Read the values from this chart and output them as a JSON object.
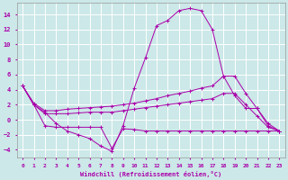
{
  "xlabel": "Windchill (Refroidissement éolien,°C)",
  "background_color": "#cce8e8",
  "grid_color": "#ffffff",
  "line_color": "#aa00aa",
  "xlim": [
    -0.5,
    23.5
  ],
  "ylim": [
    -5,
    15.5
  ],
  "xticks": [
    0,
    1,
    2,
    3,
    4,
    5,
    6,
    7,
    8,
    9,
    10,
    11,
    12,
    13,
    14,
    15,
    16,
    17,
    18,
    19,
    20,
    21,
    22,
    23
  ],
  "yticks": [
    -4,
    -2,
    0,
    2,
    4,
    6,
    8,
    10,
    12,
    14
  ],
  "curve1_x": [
    0,
    1,
    2,
    3,
    4,
    5,
    6,
    7,
    8,
    9,
    10,
    11,
    12,
    13,
    14,
    15,
    16,
    17,
    18,
    19,
    20,
    21,
    22,
    23
  ],
  "curve1_y": [
    4.5,
    2.0,
    1.0,
    -0.5,
    -1.5,
    -2.0,
    -2.5,
    -3.5,
    -4.2,
    -0.8,
    4.2,
    8.2,
    12.5,
    13.2,
    14.5,
    14.8,
    14.5,
    12.0,
    5.8,
    3.2,
    1.5,
    1.5,
    -0.5,
    -1.5
  ],
  "curve2_x": [
    0,
    1,
    2,
    3,
    4,
    5,
    6,
    7,
    8,
    9,
    10,
    11,
    12,
    13,
    14,
    15,
    16,
    17,
    18,
    19,
    20,
    21,
    22,
    23
  ],
  "curve2_y": [
    4.5,
    2.2,
    1.2,
    1.2,
    1.4,
    1.5,
    1.6,
    1.7,
    1.8,
    2.0,
    2.2,
    2.5,
    2.8,
    3.2,
    3.5,
    3.8,
    4.2,
    4.5,
    5.8,
    5.8,
    3.5,
    1.5,
    -0.8,
    -1.5
  ],
  "curve3_x": [
    0,
    1,
    2,
    3,
    4,
    5,
    6,
    7,
    8,
    9,
    10,
    11,
    12,
    13,
    14,
    15,
    16,
    17,
    18,
    19,
    20,
    21,
    22,
    23
  ],
  "curve3_y": [
    4.5,
    2.0,
    0.8,
    0.8,
    0.8,
    0.9,
    1.0,
    1.0,
    1.0,
    1.2,
    1.4,
    1.6,
    1.8,
    2.0,
    2.2,
    2.4,
    2.6,
    2.8,
    3.5,
    3.5,
    2.0,
    0.5,
    -1.0,
    -1.5
  ],
  "curve4_x": [
    0,
    1,
    2,
    3,
    4,
    5,
    6,
    7,
    8,
    9,
    10,
    11,
    12,
    13,
    14,
    15,
    16,
    17,
    18,
    19,
    20,
    21,
    22,
    23
  ],
  "curve4_y": [
    4.5,
    2.0,
    -0.8,
    -1.0,
    -1.0,
    -1.0,
    -1.0,
    -1.0,
    -3.8,
    -1.2,
    -1.3,
    -1.5,
    -1.5,
    -1.5,
    -1.5,
    -1.5,
    -1.5,
    -1.5,
    -1.5,
    -1.5,
    -1.5,
    -1.5,
    -1.5,
    -1.5
  ]
}
